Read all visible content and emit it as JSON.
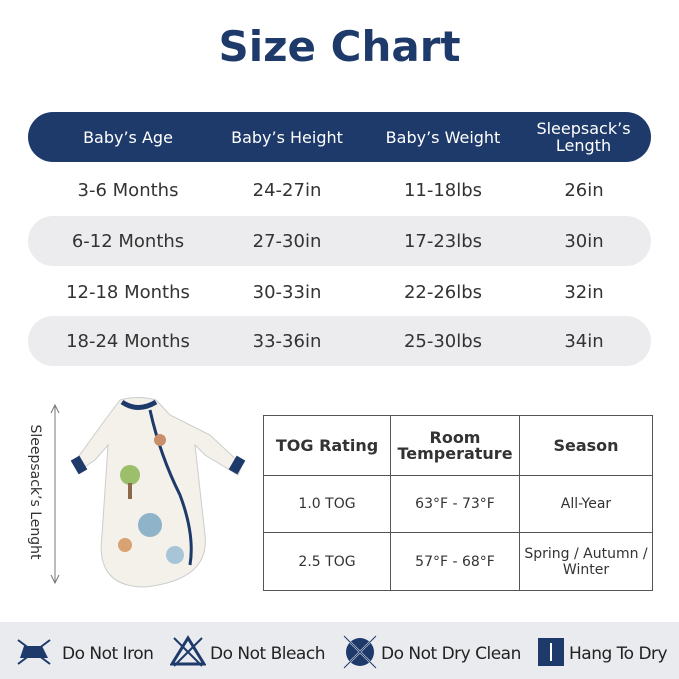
{
  "title": "Size Chart",
  "size_table": {
    "header": [
      "Baby’s Age",
      "Baby’s Height",
      "Baby’s Weight",
      "Sleepsack’s Length"
    ],
    "rows": [
      [
        "3-6 Months",
        "24-27in",
        "11-18lbs",
        "26in"
      ],
      [
        "6-12 Months",
        "27-30in",
        "17-23lbs",
        "30in"
      ],
      [
        "12-18 Months",
        "30-33in",
        "22-26lbs",
        "32in"
      ],
      [
        "18-24 Months",
        "33-36in",
        "25-30lbs",
        "34in"
      ]
    ]
  },
  "side_label": "Sleepsack’s Lenght",
  "tog_table": {
    "header": [
      "TOG Rating",
      "Room Temperature",
      "Season"
    ],
    "rows": [
      [
        "1.0 TOG",
        "63°F  - 73°F",
        "All-Year"
      ],
      [
        "2.5 TOG",
        "57°F  - 68°F",
        "Spring / Autumn / Winter"
      ]
    ]
  },
  "care": [
    "Do Not Iron",
    "Do Not Bleach",
    "Do Not Dry Clean",
    "Hang To Dry"
  ]
}
